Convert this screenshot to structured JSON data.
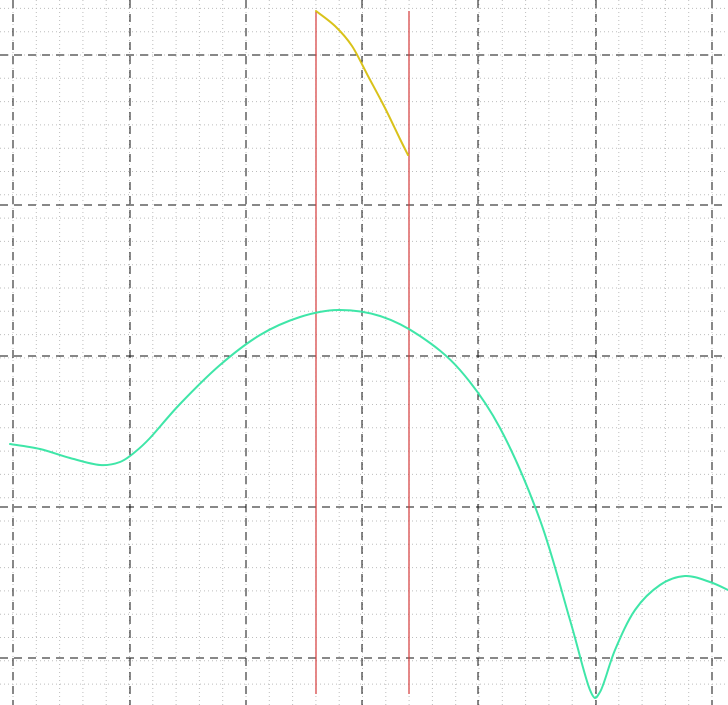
{
  "chart_data": {
    "type": "line",
    "grid": true,
    "legend": "none",
    "xlim": [
      0,
      728
    ],
    "ylim": [
      -705,
      0
    ],
    "major_x": [
      13,
      130,
      246,
      362,
      478,
      596,
      712
    ],
    "major_y": [
      -55,
      -205,
      -356,
      -507,
      -658
    ],
    "minor_step": 23.3,
    "series": [
      {
        "color": "#3fe6a8",
        "x": [
          10,
          40,
          70,
          100,
          120,
          135,
          150,
          180,
          220,
          260,
          300,
          338,
          380,
          420,
          460,
          500,
          540,
          570,
          590,
          600,
          615,
          635,
          660,
          685,
          710,
          728
        ],
        "y": [
          -444,
          -449,
          -458,
          -465,
          -462,
          -452,
          -438,
          -404,
          -365,
          -335,
          -317,
          -310,
          -316,
          -336,
          -370,
          -428,
          -520,
          -620,
          -690,
          -692,
          -650,
          -610,
          -585,
          -576,
          -582,
          -590
        ]
      },
      {
        "color": "#d9c21a",
        "x": [
          316,
          335,
          352,
          368,
          385,
          400,
          408
        ],
        "y": [
          -11,
          -26,
          -46,
          -76,
          -108,
          -139,
          -155
        ]
      }
    ],
    "vlines": [
      {
        "x": 316,
        "color": "#d43a3a"
      },
      {
        "x": 409,
        "color": "#d43a3a"
      }
    ]
  }
}
